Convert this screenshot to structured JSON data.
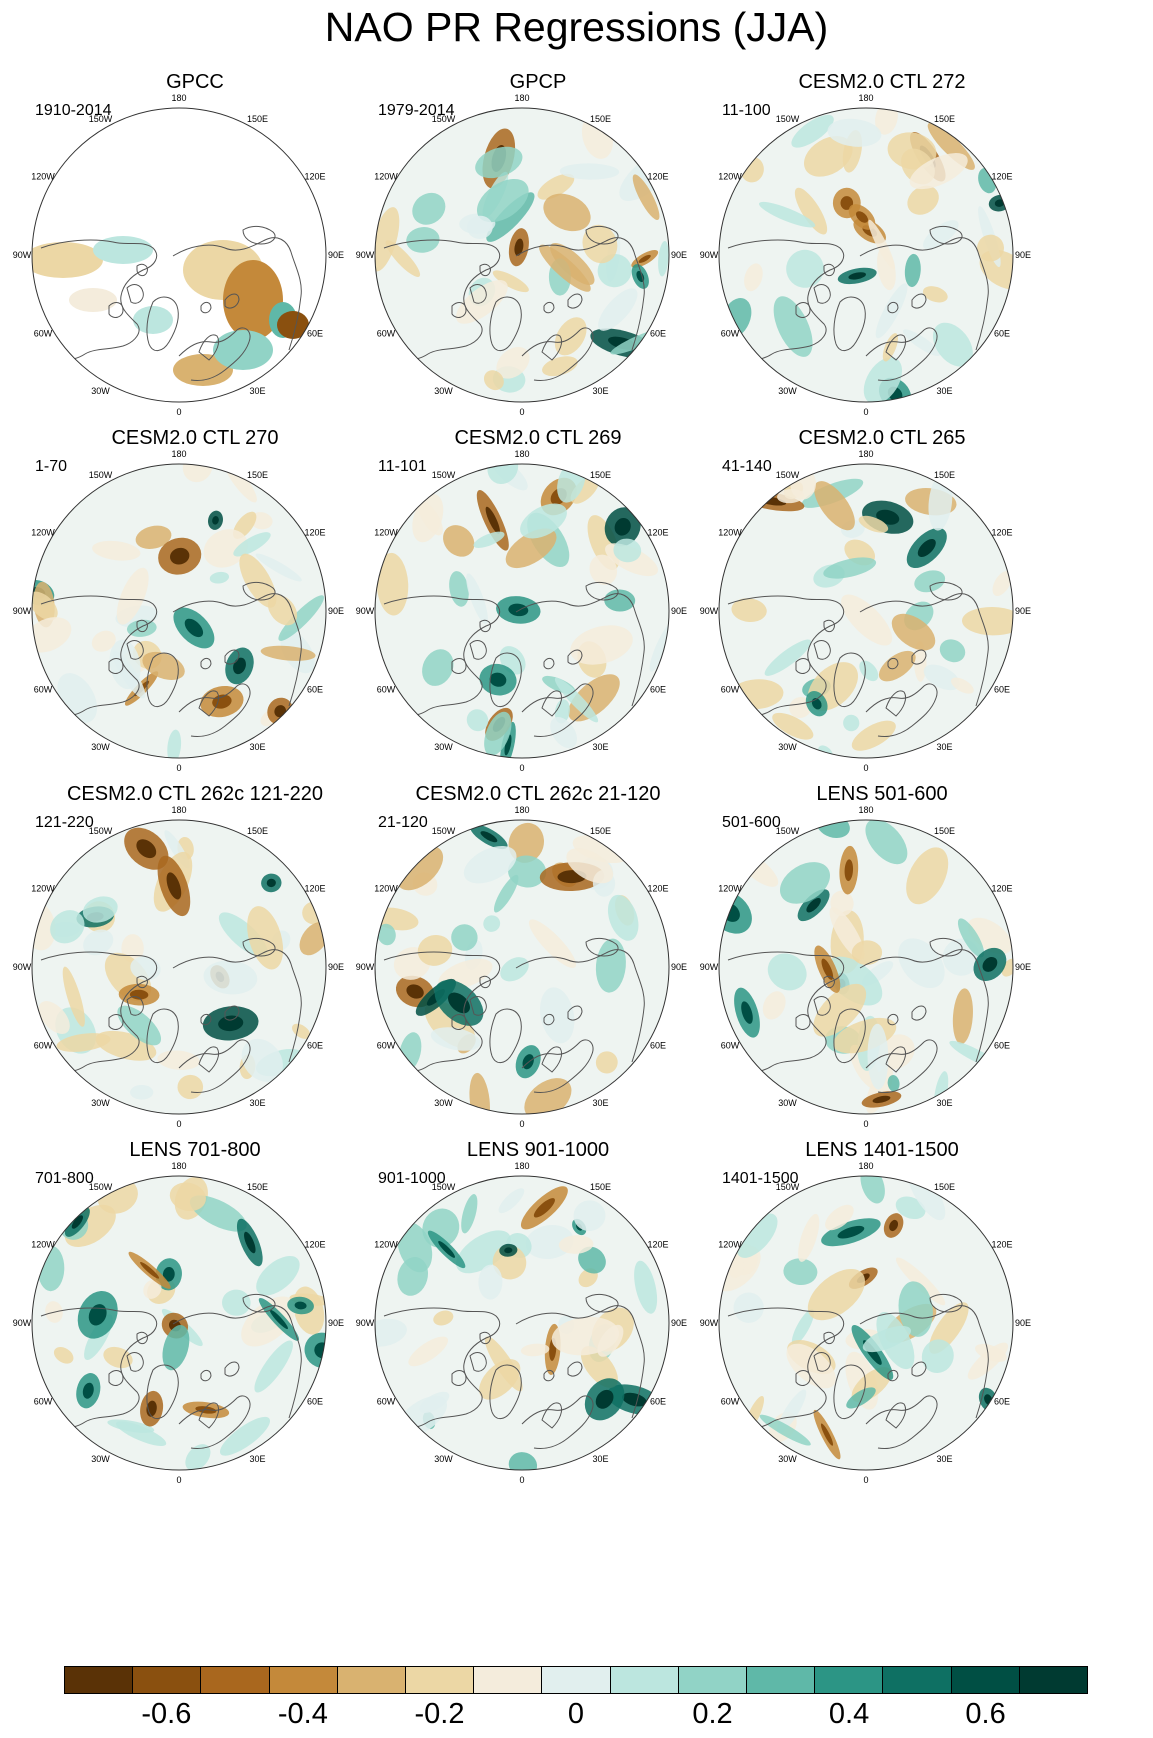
{
  "title": "NAO PR Regressions (JJA)",
  "lon_labels": [
    "180",
    "150E",
    "120E",
    "90E",
    "60E",
    "30E",
    "0",
    "30W",
    "60W",
    "90W",
    "120W",
    "150W"
  ],
  "panels": [
    {
      "title": "GPCC",
      "period": "1910-2014"
    },
    {
      "title": "GPCP",
      "period": "1979-2014"
    },
    {
      "title": "CESM2.0 CTL 272",
      "period": "11-100"
    },
    {
      "title": "CESM2.0 CTL 270",
      "period": "1-70"
    },
    {
      "title": "CESM2.0 CTL 269",
      "period": "11-101"
    },
    {
      "title": "CESM2.0 CTL 265",
      "period": "41-140"
    },
    {
      "title": "CESM2.0 CTL 262c 121-220",
      "period": "121-220"
    },
    {
      "title": "CESM2.0 CTL 262c 21-120",
      "period": "21-120"
    },
    {
      "title": "LENS 501-600",
      "period": "501-600"
    },
    {
      "title": "LENS 701-800",
      "period": "701-800"
    },
    {
      "title": "LENS 901-1000",
      "period": "901-1000"
    },
    {
      "title": "LENS 1401-1500",
      "period": "1401-1500"
    }
  ],
  "colorbar": {
    "colors": [
      "#5a3206",
      "#8a500f",
      "#a9671e",
      "#c4893a",
      "#d9b270",
      "#ecd7a5",
      "#f4ecdc",
      "#e1efee",
      "#bce6df",
      "#91d3c6",
      "#5fb8a8",
      "#2c9585",
      "#0e7063",
      "#004f44",
      "#003a31"
    ],
    "labels": [
      "-0.6",
      "-0.4",
      "-0.2",
      "0",
      "0.2",
      "0.4",
      "0.6"
    ],
    "label_values": [
      -0.6,
      -0.4,
      -0.2,
      0,
      0.2,
      0.4,
      0.6
    ],
    "min": -0.75,
    "max": 0.75
  }
}
